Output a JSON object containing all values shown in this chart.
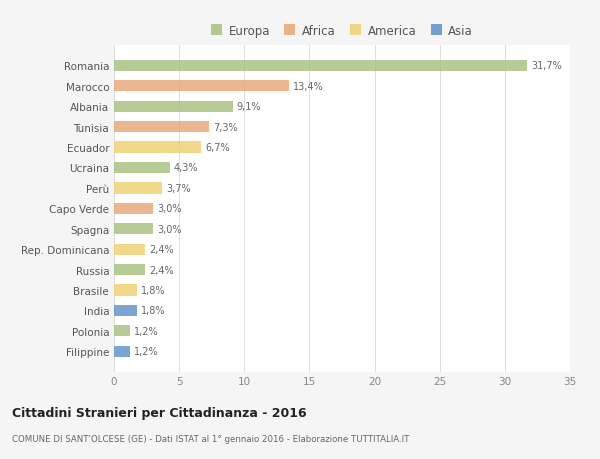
{
  "countries": [
    "Romania",
    "Marocco",
    "Albania",
    "Tunisia",
    "Ecuador",
    "Ucraina",
    "Perù",
    "Capo Verde",
    "Spagna",
    "Rep. Dominicana",
    "Russia",
    "Brasile",
    "India",
    "Polonia",
    "Filippine"
  ],
  "values": [
    31.7,
    13.4,
    9.1,
    7.3,
    6.7,
    4.3,
    3.7,
    3.0,
    3.0,
    2.4,
    2.4,
    1.8,
    1.8,
    1.2,
    1.2
  ],
  "labels": [
    "31,7%",
    "13,4%",
    "9,1%",
    "7,3%",
    "6,7%",
    "4,3%",
    "3,7%",
    "3,0%",
    "3,0%",
    "2,4%",
    "2,4%",
    "1,8%",
    "1,8%",
    "1,2%",
    "1,2%"
  ],
  "continents": [
    "Europa",
    "Africa",
    "Europa",
    "Africa",
    "America",
    "Europa",
    "America",
    "Africa",
    "Europa",
    "America",
    "Europa",
    "America",
    "Asia",
    "Europa",
    "Asia"
  ],
  "colors": {
    "Europa": "#a8c080",
    "Africa": "#e8a878",
    "America": "#f0d070",
    "Asia": "#6090c8"
  },
  "legend_order": [
    "Europa",
    "Africa",
    "America",
    "Asia"
  ],
  "title": "Cittadini Stranieri per Cittadinanza - 2016",
  "subtitle": "COMUNE DI SANT'OLCESE (GE) - Dati ISTAT al 1° gennaio 2016 - Elaborazione TUTTITALIA.IT",
  "xlim": [
    0,
    35
  ],
  "xticks": [
    0,
    5,
    10,
    15,
    20,
    25,
    30,
    35
  ],
  "bg_color": "#f5f5f5",
  "plot_bg_color": "#ffffff"
}
